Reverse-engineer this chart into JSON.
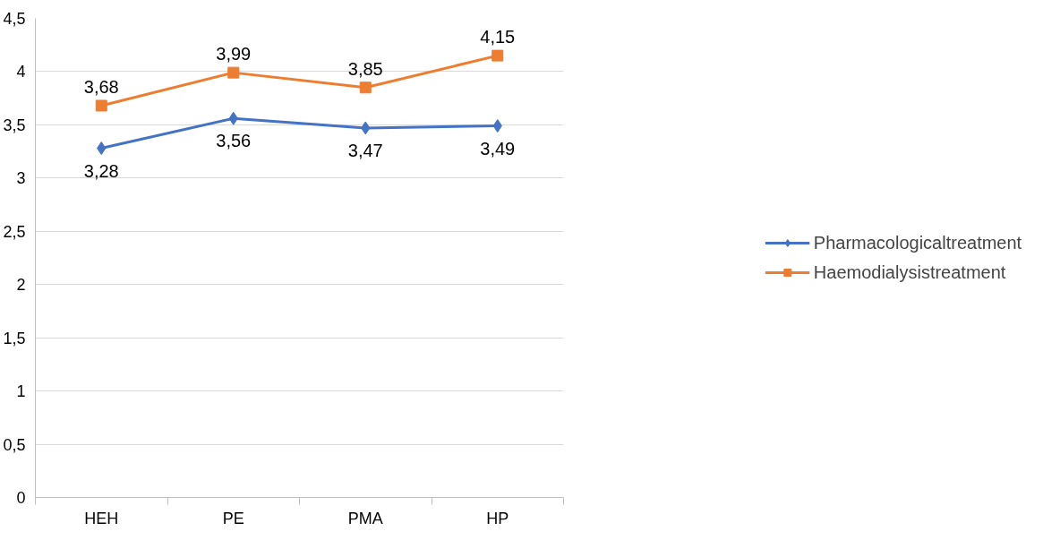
{
  "chart_data": {
    "type": "line",
    "categories": [
      "HEH",
      "PE",
      "PMA",
      "HP"
    ],
    "series": [
      {
        "name": "Pharmacologicaltreatment",
        "color": "#4472c4",
        "marker": "diamond",
        "values": [
          3.28,
          3.56,
          3.47,
          3.49
        ],
        "value_labels": [
          "3,28",
          "3,56",
          "3,47",
          "3,49"
        ]
      },
      {
        "name": "Haemodialysistreatment",
        "color": "#ed7d31",
        "marker": "square",
        "values": [
          3.68,
          3.99,
          3.85,
          4.15
        ],
        "value_labels": [
          "3,68",
          "3,99",
          "3,85",
          "4,15"
        ]
      }
    ],
    "ylim": [
      0,
      4.5
    ],
    "yticks": [
      0,
      {
        "value": 0.5,
        "label": "0,5"
      },
      1,
      {
        "value": 1.5,
        "label": "1,5"
      },
      2,
      {
        "value": 2.5,
        "label": "2,5"
      },
      3,
      {
        "value": 3.5,
        "label": "3,5"
      },
      4,
      {
        "value": 4.5,
        "label": "4,5"
      }
    ],
    "grid": "y",
    "legend": "right",
    "line_style": "solid"
  }
}
